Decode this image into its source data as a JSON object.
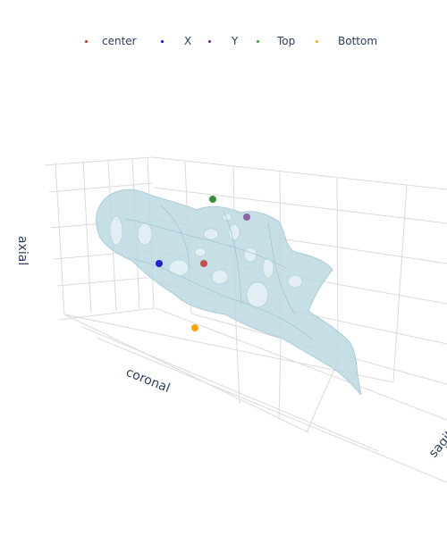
{
  "chart_data": {
    "type": "scatter",
    "title": "",
    "axes": {
      "x_title": "sagittal",
      "y_title": "coronal",
      "z_title": "axial",
      "grid": true
    },
    "series": [
      {
        "name": "center",
        "color": "#c0504d",
        "points": [
          [
            0,
            0,
            0
          ]
        ]
      },
      {
        "name": "X",
        "color": "#1f1fd6",
        "points": [
          [
            -1,
            0,
            0
          ]
        ]
      },
      {
        "name": "Y",
        "color": "#8e63a8",
        "points": [
          [
            0,
            1,
            0
          ]
        ]
      },
      {
        "name": "Top",
        "color": "#3c8f3c",
        "points": [
          [
            0,
            0,
            -1
          ]
        ]
      },
      {
        "name": "Bottom",
        "color": "#ffa500",
        "points": [
          [
            0,
            0,
            1
          ]
        ]
      }
    ],
    "surface": {
      "color": "#add8e6",
      "opacity": 0.6
    },
    "legend_position": "top"
  }
}
